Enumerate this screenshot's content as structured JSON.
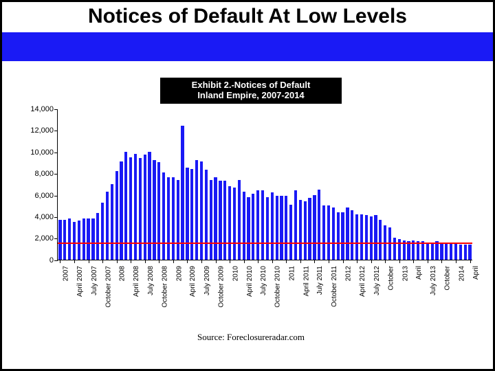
{
  "slide": {
    "title": "Notices of Default At Low Levels",
    "title_fontsize": 30,
    "title_color": "#000000",
    "band_color": "#1a1af5",
    "border_color": "#000000"
  },
  "chart": {
    "type": "bar",
    "title_line1": "Exhibit 2.-Notices of Default",
    "title_line2": "Inland Empire, 2007-2014",
    "title_bg": "#000000",
    "title_fg": "#ffffff",
    "title_fontsize": 13,
    "ylim": [
      0,
      14000
    ],
    "ytick_step": 2000,
    "ytick_labels": [
      "0",
      "2,000",
      "4,000",
      "6,000",
      "8,000",
      "10,000",
      "12,000",
      "14,000"
    ],
    "bar_color": "#1a1af5",
    "reference_line": {
      "value": 1500,
      "color": "#ff0000",
      "width": 2
    },
    "background_color": "#ffffff",
    "axis_color": "#000000",
    "bar_width_ratio": 0.62,
    "x_label_fontsize": 10,
    "y_label_fontsize": 11,
    "source": "Source:  Foreclosureradar.com",
    "source_fontsize": 13,
    "categories": [
      "2007",
      "",
      "",
      "April 2007",
      "",
      "",
      "July 2007",
      "",
      "",
      "October 2007",
      "",
      "",
      "2008",
      "",
      "",
      "April 2008",
      "",
      "",
      "July 2008",
      "",
      "",
      "October 2008",
      "",
      "",
      "2009",
      "",
      "",
      "April 2009",
      "",
      "",
      "July 2009",
      "",
      "",
      "October 2009",
      "",
      "",
      "2010",
      "",
      "",
      "April 2010",
      "",
      "",
      "July 2010",
      "",
      "",
      "October 2010",
      "",
      "",
      "2011",
      "",
      "",
      "April 2011",
      "",
      "",
      "July 2011",
      "",
      "",
      "October 2011",
      "",
      "",
      "2012",
      "",
      "",
      "April 2012",
      "",
      "",
      "July 2012",
      "",
      "",
      "October",
      "",
      "",
      "2013",
      "",
      "",
      "April",
      "",
      "",
      "July 2013",
      "",
      "",
      "October",
      "",
      "",
      "2014",
      "",
      "",
      "April"
    ],
    "values": [
      3700,
      3700,
      3800,
      3500,
      3600,
      3800,
      3800,
      3800,
      4300,
      5300,
      6300,
      7000,
      8200,
      9100,
      10000,
      9500,
      9800,
      9400,
      9700,
      10000,
      9200,
      9000,
      8100,
      7600,
      7600,
      7400,
      12400,
      8500,
      8400,
      9200,
      9100,
      8300,
      7400,
      7600,
      7300,
      7300,
      6800,
      6700,
      7400,
      6300,
      5800,
      6100,
      6400,
      6400,
      5800,
      6200,
      5900,
      5900,
      5900,
      5100,
      6400,
      5500,
      5400,
      5700,
      6000,
      6500,
      5000,
      5000,
      4800,
      4400,
      4400,
      4800,
      4600,
      4200,
      4200,
      4100,
      4000,
      4100,
      3700,
      3200,
      3000,
      2000,
      1900,
      1800,
      1700,
      1800,
      1700,
      1700,
      1600,
      1600,
      1700,
      1600,
      1600,
      1500,
      1500,
      1400,
      1400,
      1400
    ]
  }
}
